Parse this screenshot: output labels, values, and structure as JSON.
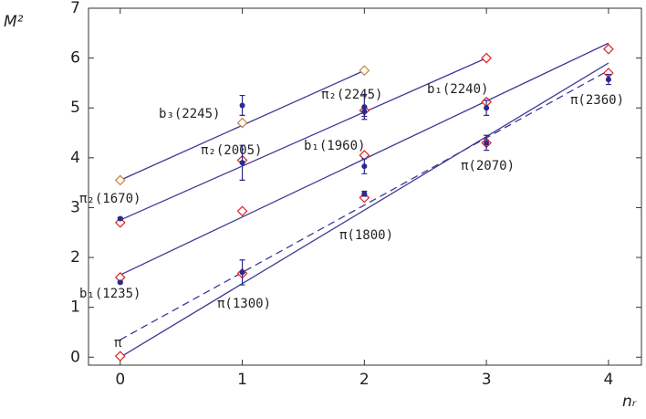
{
  "chart_data": {
    "type": "scatter",
    "y_label": "M²",
    "x_label": "nᵣ",
    "xlim": [
      -0.26,
      4.27
    ],
    "ylim": [
      -0.16,
      7
    ],
    "xticks": [
      0,
      1,
      2,
      3,
      4
    ],
    "yticks": [
      0,
      1,
      2,
      3,
      4,
      5,
      6,
      7
    ],
    "lines": [
      {
        "x": [
          0,
          4
        ],
        "values": [
          0,
          5.9
        ],
        "color": "#3b3b96",
        "dashed": false
      },
      {
        "x": [
          0,
          4
        ],
        "values": [
          0.35,
          5.75
        ],
        "color": "#3b3b96",
        "dashed": true
      },
      {
        "x": [
          0,
          4
        ],
        "values": [
          1.65,
          6.3
        ],
        "color": "#3b3b96",
        "dashed": false
      },
      {
        "x": [
          0,
          3
        ],
        "values": [
          2.75,
          6.0
        ],
        "color": "#3b3b96",
        "dashed": false
      },
      {
        "x": [
          0,
          2
        ],
        "values": [
          3.55,
          5.75
        ],
        "color": "#3b3b96",
        "dashed": false
      }
    ],
    "diamonds": [
      {
        "x": [
          0,
          1,
          2,
          3,
          4,
          0,
          1,
          2,
          3,
          4,
          0,
          1,
          2,
          3
        ],
        "values": [
          0.02,
          1.68,
          3.2,
          4.3,
          5.7,
          1.6,
          2.93,
          4.05,
          5.12,
          6.18,
          2.7,
          3.95,
          4.95,
          6.0
        ],
        "color": "#e02020"
      },
      {
        "x": [
          0,
          1,
          2
        ],
        "values": [
          3.55,
          4.7,
          5.75
        ],
        "color": "#c8803a"
      }
    ],
    "measurements": {
      "color": "#2a2a8c",
      "x": [
        0,
        0,
        1,
        1,
        1,
        2,
        2,
        2,
        2,
        3,
        3,
        4
      ],
      "values": [
        1.5,
        2.78,
        1.7,
        3.9,
        5.05,
        3.28,
        3.83,
        5.02,
        4.93,
        4.3,
        5.0,
        5.57
      ],
      "errors": [
        0.02,
        0.02,
        0.25,
        0.35,
        0.2,
        0.05,
        0.15,
        0.25,
        0.1,
        0.15,
        0.15,
        0.1
      ]
    },
    "annotations": [
      "b₃(2245)",
      "π₂(2245)",
      "b₁(2240)",
      "π₂(2005)",
      "b₁(1960)",
      "π(2360)",
      "π(2070)",
      "π₂(1670)",
      "π(1800)",
      "b₁(1235)",
      "π(1300)",
      "π"
    ]
  }
}
